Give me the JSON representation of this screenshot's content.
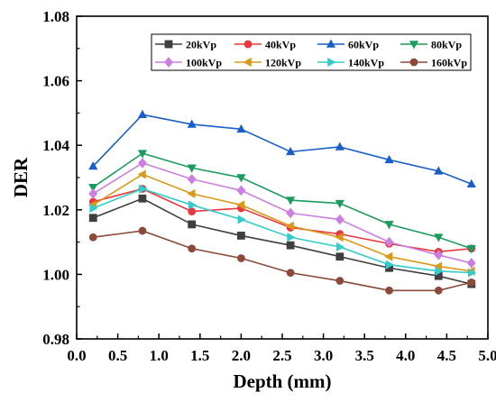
{
  "chart_data": {
    "type": "line",
    "xlabel": "Depth (mm)",
    "ylabel": "DER",
    "xlim": [
      0.0,
      5.0
    ],
    "ylim": [
      0.98,
      1.08
    ],
    "xticks": [
      "0.0",
      "0.5",
      "1.0",
      "1.5",
      "2.0",
      "2.5",
      "3.0",
      "3.5",
      "4.0",
      "4.5",
      "5.0"
    ],
    "yticks": [
      "0.98",
      "1.00",
      "1.02",
      "1.04",
      "1.06",
      "1.08"
    ],
    "x": [
      0.2,
      0.8,
      1.4,
      2.0,
      2.6,
      3.2,
      3.8,
      4.4,
      4.8
    ],
    "grid": false,
    "legend_position": "top-right",
    "series": [
      {
        "name": "20kVp",
        "color": "#3f3f3f",
        "marker": "square",
        "values": [
          1.0175,
          1.0235,
          1.0155,
          1.012,
          1.009,
          1.0055,
          1.002,
          0.9995,
          0.997
        ]
      },
      {
        "name": "40kVp",
        "color": "#e8383d",
        "marker": "circle",
        "values": [
          1.0225,
          1.0265,
          1.0195,
          1.0205,
          1.0145,
          1.0125,
          1.0095,
          1.007,
          1.008
        ]
      },
      {
        "name": "60kVp",
        "color": "#1a5fc8",
        "marker": "triangle-up",
        "values": [
          1.0335,
          1.0495,
          1.0465,
          1.045,
          1.038,
          1.0395,
          1.0355,
          1.032,
          1.028
        ]
      },
      {
        "name": "80kVp",
        "color": "#1c9b5e",
        "marker": "triangle-down",
        "values": [
          1.027,
          1.0375,
          1.033,
          1.03,
          1.023,
          1.022,
          1.0155,
          1.0115,
          1.008
        ]
      },
      {
        "name": "100kVp",
        "color": "#cc7fe0",
        "marker": "diamond",
        "values": [
          1.025,
          1.0345,
          1.0295,
          1.026,
          1.019,
          1.017,
          1.01,
          1.006,
          1.0035
        ]
      },
      {
        "name": "120kVp",
        "color": "#d99a1a",
        "marker": "triangle-left",
        "values": [
          1.0215,
          1.031,
          1.025,
          1.0215,
          1.015,
          1.0115,
          1.0055,
          1.0025,
          1.001
        ]
      },
      {
        "name": "140kVp",
        "color": "#33cccc",
        "marker": "triangle-right",
        "values": [
          1.0205,
          1.0265,
          1.0215,
          1.017,
          1.0115,
          1.0085,
          1.003,
          1.001,
          1.0005
        ]
      },
      {
        "name": "160kVp",
        "color": "#8b4a3a",
        "marker": "circle",
        "values": [
          1.0115,
          1.0135,
          1.008,
          1.005,
          1.0005,
          0.998,
          0.995,
          0.995,
          0.9975
        ]
      }
    ]
  }
}
